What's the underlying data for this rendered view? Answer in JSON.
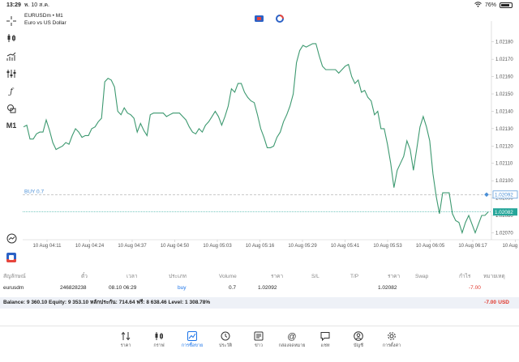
{
  "status": {
    "time": "13:29",
    "date": "พ. 10 ส.ค.",
    "battery": "76%"
  },
  "chart": {
    "symbol": "EURUSDm • M1",
    "description": "Euro vs US Dollar",
    "timeframe_label": "M1",
    "price_ticks": [
      "1.02180",
      "1.02170",
      "1.02160",
      "1.02150",
      "1.02140",
      "1.02130",
      "1.02120",
      "1.02110",
      "1.02100",
      "1.02090",
      "1.02080",
      "1.02070"
    ],
    "time_ticks": [
      "10 Aug 04:11",
      "10 Aug 04:24",
      "10 Aug 04:37",
      "10 Aug 04:50",
      "10 Aug 05:03",
      "10 Aug 05:16",
      "10 Aug 05:29",
      "10 Aug 05:41",
      "10 Aug 05:53",
      "10 Aug 06:05",
      "10 Aug 06:17",
      "10 Aug 06:2"
    ],
    "order_line": {
      "label": "BUY 0.7",
      "price_tag": "1.02092"
    },
    "bid_tag": "1.02082",
    "line_color": "#3d9970",
    "bid_color": "#26a69a",
    "order_color": "#4a8fd6"
  },
  "chart_data": {
    "type": "line",
    "series": [
      {
        "values": [
          1.02131,
          1.02132,
          1.02124,
          1.02124,
          1.02127,
          1.02128,
          1.02128,
          1.02135,
          1.02129,
          1.02122,
          1.02118,
          1.02119,
          1.0212,
          1.02122,
          1.02121,
          1.02126,
          1.0213,
          1.02128,
          1.02125,
          1.02126,
          1.02126,
          1.0213,
          1.02131,
          1.02134,
          1.02136,
          1.02157,
          1.02159,
          1.02158,
          1.02154,
          1.0214,
          1.02138,
          1.02142,
          1.02139,
          1.02138,
          1.02136,
          1.02128,
          1.02133,
          1.02129,
          1.02126,
          1.02138,
          1.02139,
          1.02139,
          1.02139,
          1.02139,
          1.02137,
          1.02138,
          1.02139,
          1.02139,
          1.02139,
          1.02137,
          1.02135,
          1.02131,
          1.02128,
          1.02127,
          1.0213,
          1.02128,
          1.02132,
          1.02134,
          1.02137,
          1.0214,
          1.02137,
          1.02132,
          1.02137,
          1.02143,
          1.02153,
          1.02151,
          1.02156,
          1.02156,
          1.02151,
          1.02148,
          1.02146,
          1.02145,
          1.02138,
          1.0213,
          1.02125,
          1.02119,
          1.02119,
          1.0212,
          1.02125,
          1.02128,
          1.02134,
          1.02138,
          1.02143,
          1.0215,
          1.02168,
          1.02175,
          1.02178,
          1.02177,
          1.02178,
          1.02179,
          1.02179,
          1.02172,
          1.02166,
          1.02164,
          1.02164,
          1.02164,
          1.02164,
          1.02162,
          1.02164,
          1.02166,
          1.02167,
          1.0216,
          1.02156,
          1.02158,
          1.02151,
          1.02152,
          1.02148,
          1.02146,
          1.02138,
          1.0214,
          1.0213,
          1.0213,
          1.02121,
          1.0211,
          1.02096,
          1.02106,
          1.0211,
          1.02114,
          1.02123,
          1.02118,
          1.02106,
          1.02118,
          1.02131,
          1.02137,
          1.02131,
          1.02123,
          1.02104,
          1.02091,
          1.02081,
          1.02093,
          1.02093,
          1.02093,
          1.02081,
          1.02077,
          1.02076,
          1.0207,
          1.02076,
          1.0208,
          1.02075,
          1.0207,
          1.02075,
          1.0208,
          1.0208,
          1.02082
        ]
      }
    ],
    "order_price": 1.02092,
    "bid_price": 1.02082,
    "ylim": [
      1.02066,
      1.02192
    ]
  },
  "positions": {
    "headers": [
      "สัญลักษณ์",
      "ตั๋ว",
      "เวลา",
      "ประเภท",
      "Volume",
      "ราคา",
      "S/L",
      "T/P",
      "ราคา",
      "Swap",
      "กำไร",
      "หมายเหตุ"
    ],
    "row": {
      "symbol": "eurusdm",
      "ticket": "246828238",
      "time": "08.10 06:29",
      "type": "buy",
      "volume": "0.7",
      "open_price": "1.02092",
      "sl": "",
      "tp": "",
      "price": "1.02082",
      "swap": "",
      "profit": "-7.00",
      "comment": ""
    }
  },
  "balance": {
    "summary": "Balance: 9 360.10 Equity: 9 353.10 หลักประกัน: 714.64 ฟรี: 8 638.46 Level: 1 308.78%",
    "total": "-7.00",
    "currency": "USD"
  },
  "tabs": [
    {
      "label": "ราคา",
      "icon": "arrows-updown-icon"
    },
    {
      "label": "กราฟ",
      "icon": "candles-icon"
    },
    {
      "label": "การซื้อขาย",
      "icon": "trade-chart-icon"
    },
    {
      "label": "ประวัติ",
      "icon": "history-icon"
    },
    {
      "label": "ข่าว",
      "icon": "news-icon"
    },
    {
      "label": "กล่องจดหมาย",
      "icon": "mailbox-icon"
    },
    {
      "label": "แชท",
      "icon": "chat-icon"
    },
    {
      "label": "บัญชี",
      "icon": "account-icon"
    },
    {
      "label": "การตั้งค่า",
      "icon": "gear-icon"
    }
  ]
}
